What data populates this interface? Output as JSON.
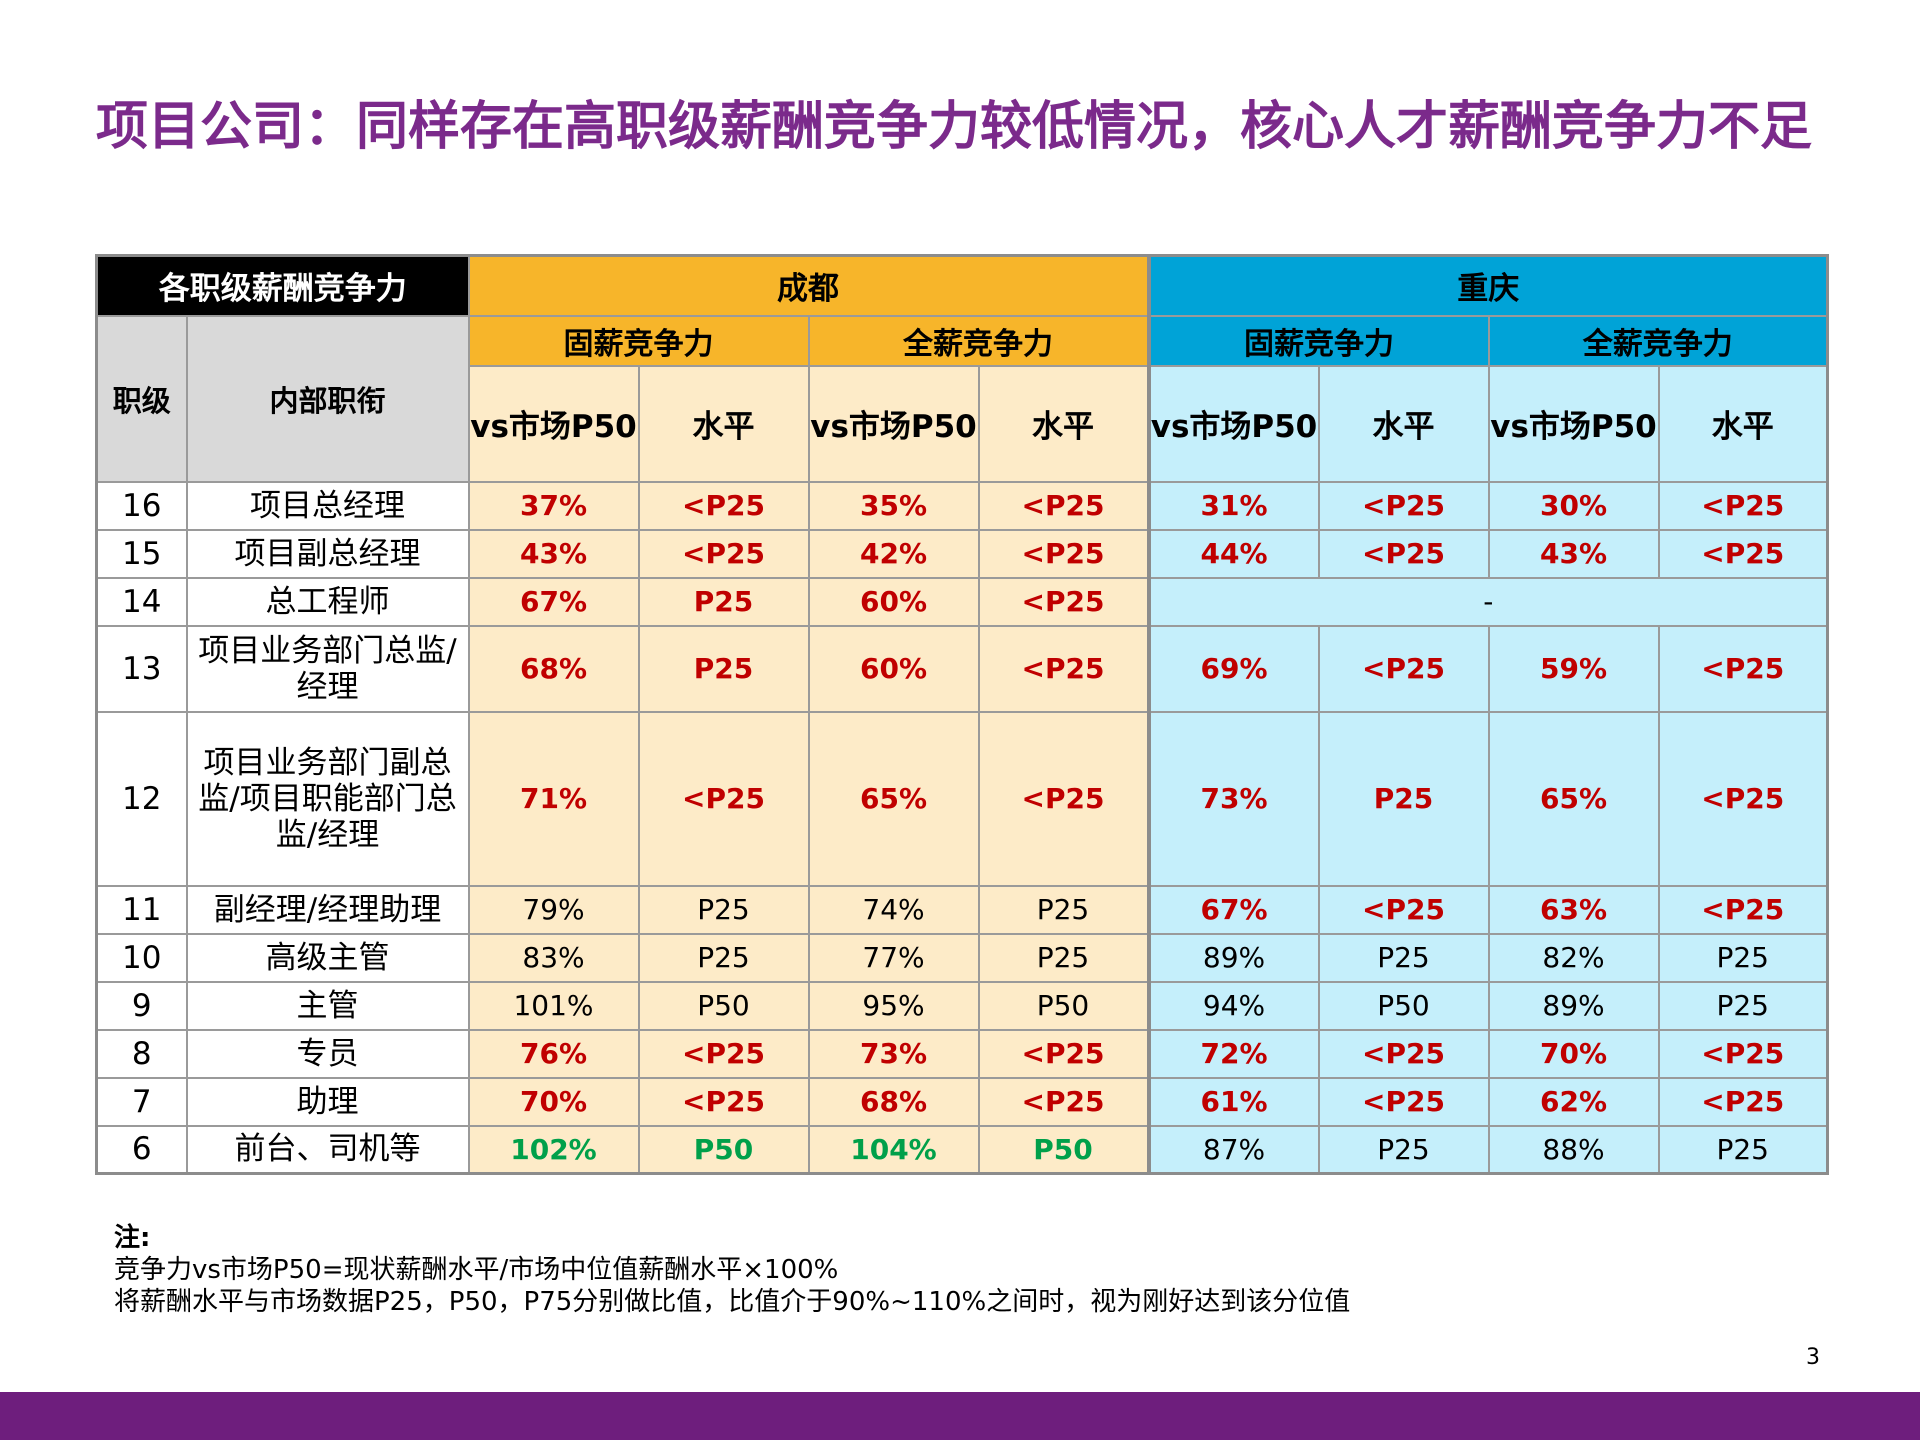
{
  "title": "项目公司：同样存在高职级薪酬竞争力较低情况，核心人才薪酬竞争力不足",
  "table": {
    "corner_label": "各职级薪酬竞争力",
    "col_level": "职级",
    "col_title": "内部职衔",
    "city1": "成都",
    "city2": "重庆",
    "group_fixed": "固薪竞争力",
    "group_total": "全薪竞争力",
    "sub_ratio": "vs市场P50",
    "sub_level": "水平",
    "merged_14_chongqing": "-",
    "rows": [
      {
        "level": "16",
        "title": "项目总经理",
        "cells": [
          {
            "v": "37%",
            "c": "red"
          },
          {
            "v": "<P25",
            "c": "red"
          },
          {
            "v": "35%",
            "c": "red"
          },
          {
            "v": "<P25",
            "c": "red"
          },
          {
            "v": "31%",
            "c": "red"
          },
          {
            "v": "<P25",
            "c": "red"
          },
          {
            "v": "30%",
            "c": "red"
          },
          {
            "v": "<P25",
            "c": "red"
          }
        ]
      },
      {
        "level": "15",
        "title": "项目副总经理",
        "cells": [
          {
            "v": "43%",
            "c": "red"
          },
          {
            "v": "<P25",
            "c": "red"
          },
          {
            "v": "42%",
            "c": "red"
          },
          {
            "v": "<P25",
            "c": "red"
          },
          {
            "v": "44%",
            "c": "red"
          },
          {
            "v": "<P25",
            "c": "red"
          },
          {
            "v": "43%",
            "c": "red"
          },
          {
            "v": "<P25",
            "c": "red"
          }
        ]
      },
      {
        "level": "14",
        "title": "总工程师",
        "cells": [
          {
            "v": "67%",
            "c": "red"
          },
          {
            "v": "P25",
            "c": "red"
          },
          {
            "v": "60%",
            "c": "red"
          },
          {
            "v": "<P25",
            "c": "red"
          }
        ]
      },
      {
        "level": "13",
        "title": "项目业务部门总监/经理",
        "cells": [
          {
            "v": "68%",
            "c": "red"
          },
          {
            "v": "P25",
            "c": "red"
          },
          {
            "v": "60%",
            "c": "red"
          },
          {
            "v": "<P25",
            "c": "red"
          },
          {
            "v": "69%",
            "c": "red"
          },
          {
            "v": "<P25",
            "c": "red"
          },
          {
            "v": "59%",
            "c": "red"
          },
          {
            "v": "<P25",
            "c": "red"
          }
        ]
      },
      {
        "level": "12",
        "title": "项目业务部门副总监/项目职能部门总监/经理",
        "cells": [
          {
            "v": "71%",
            "c": "red"
          },
          {
            "v": "<P25",
            "c": "red"
          },
          {
            "v": "65%",
            "c": "red"
          },
          {
            "v": "<P25",
            "c": "red"
          },
          {
            "v": "73%",
            "c": "red"
          },
          {
            "v": "P25",
            "c": "red"
          },
          {
            "v": "65%",
            "c": "red"
          },
          {
            "v": "<P25",
            "c": "red"
          }
        ]
      },
      {
        "level": "11",
        "title": "副经理/经理助理",
        "cells": [
          {
            "v": "79%",
            "c": "blk"
          },
          {
            "v": "P25",
            "c": "blk"
          },
          {
            "v": "74%",
            "c": "blk"
          },
          {
            "v": "P25",
            "c": "blk"
          },
          {
            "v": "67%",
            "c": "red"
          },
          {
            "v": "<P25",
            "c": "red"
          },
          {
            "v": "63%",
            "c": "red"
          },
          {
            "v": "<P25",
            "c": "red"
          }
        ]
      },
      {
        "level": "10",
        "title": "高级主管",
        "cells": [
          {
            "v": "83%",
            "c": "blk"
          },
          {
            "v": "P25",
            "c": "blk"
          },
          {
            "v": "77%",
            "c": "blk"
          },
          {
            "v": "P25",
            "c": "blk"
          },
          {
            "v": "89%",
            "c": "blk"
          },
          {
            "v": "P25",
            "c": "blk"
          },
          {
            "v": "82%",
            "c": "blk"
          },
          {
            "v": "P25",
            "c": "blk"
          }
        ]
      },
      {
        "level": "9",
        "title": "主管",
        "cells": [
          {
            "v": "101%",
            "c": "blk"
          },
          {
            "v": "P50",
            "c": "blk"
          },
          {
            "v": "95%",
            "c": "blk"
          },
          {
            "v": "P50",
            "c": "blk"
          },
          {
            "v": "94%",
            "c": "blk"
          },
          {
            "v": "P50",
            "c": "blk"
          },
          {
            "v": "89%",
            "c": "blk"
          },
          {
            "v": "P25",
            "c": "blk"
          }
        ]
      },
      {
        "level": "8",
        "title": "专员",
        "cells": [
          {
            "v": "76%",
            "c": "red"
          },
          {
            "v": "<P25",
            "c": "red"
          },
          {
            "v": "73%",
            "c": "red"
          },
          {
            "v": "<P25",
            "c": "red"
          },
          {
            "v": "72%",
            "c": "red"
          },
          {
            "v": "<P25",
            "c": "red"
          },
          {
            "v": "70%",
            "c": "red"
          },
          {
            "v": "<P25",
            "c": "red"
          }
        ]
      },
      {
        "level": "7",
        "title": "助理",
        "cells": [
          {
            "v": "70%",
            "c": "red"
          },
          {
            "v": "<P25",
            "c": "red"
          },
          {
            "v": "68%",
            "c": "red"
          },
          {
            "v": "<P25",
            "c": "red"
          },
          {
            "v": "61%",
            "c": "red"
          },
          {
            "v": "<P25",
            "c": "red"
          },
          {
            "v": "62%",
            "c": "red"
          },
          {
            "v": "<P25",
            "c": "red"
          }
        ]
      },
      {
        "level": "6",
        "title": "前台、司机等",
        "cells": [
          {
            "v": "102%",
            "c": "green"
          },
          {
            "v": "P50",
            "c": "green"
          },
          {
            "v": "104%",
            "c": "green"
          },
          {
            "v": "P50",
            "c": "green"
          },
          {
            "v": "87%",
            "c": "blk"
          },
          {
            "v": "P25",
            "c": "blk"
          },
          {
            "v": "88%",
            "c": "blk"
          },
          {
            "v": "P25",
            "c": "blk"
          }
        ]
      }
    ]
  },
  "notes": {
    "heading": "注:",
    "line1": "竞争力vs市场P50=现状薪酬水平/市场中位值薪酬水平×100%",
    "line2": "将薪酬水平与市场数据P25，P50，P75分别做比值，比值介于90%~110%之间时，视为刚好达到该分位值"
  },
  "page_number": "3",
  "colors": {
    "title": "#7B2A8B",
    "chengdu_header": "#F7B52A",
    "chengdu_body": "#FDEBC8",
    "chongqing_header": "#00A3D7",
    "chongqing_body": "#C5EFFB",
    "red_text": "#C00000",
    "green_text": "#00A04A",
    "footer_bar": "#6E1E7D"
  }
}
